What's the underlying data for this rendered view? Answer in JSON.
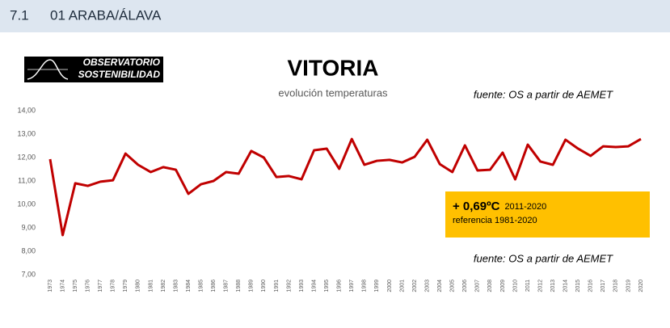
{
  "header": {
    "number": "7.1",
    "title": "01 ARABA/ÁLAVA"
  },
  "chart_data": {
    "type": "line",
    "title": "VITORIA",
    "subtitle": "evolución temperaturas",
    "logo": [
      "OBSERVATORIO",
      "SOSTENIBILIDAD"
    ],
    "sources": [
      "fuente: OS a partir de AEMET",
      "fuente: OS a partir de AEMET"
    ],
    "annotation": {
      "value_text": "+ 0,69ºC",
      "period": "2011-2020",
      "reference": "referencia 1981-2020"
    },
    "categories": [
      "1973",
      "1974",
      "1975",
      "1976",
      "1977",
      "1978",
      "1979",
      "1980",
      "1981",
      "1982",
      "1983",
      "1984",
      "1985",
      "1986",
      "1987",
      "1988",
      "1989",
      "1990",
      "1991",
      "1992",
      "1993",
      "1994",
      "1995",
      "1996",
      "1997",
      "1998",
      "1999",
      "2000",
      "2001",
      "2002",
      "2003",
      "2004",
      "2005",
      "2006",
      "2007",
      "2008",
      "2009",
      "2010",
      "2011",
      "2012",
      "2013",
      "2014",
      "2015",
      "2016",
      "2017",
      "2018",
      "2019",
      "2020"
    ],
    "values": [
      11.93,
      8.69,
      10.9,
      10.79,
      10.97,
      11.03,
      12.17,
      11.69,
      11.38,
      11.59,
      11.48,
      10.45,
      10.86,
      11.0,
      11.38,
      11.31,
      12.28,
      12.0,
      11.17,
      11.21,
      11.07,
      12.31,
      12.38,
      11.52,
      12.79,
      11.69,
      11.86,
      11.9,
      11.79,
      12.03,
      12.76,
      11.72,
      11.38,
      12.52,
      11.45,
      11.48,
      12.21,
      11.07,
      12.55,
      11.83,
      11.69,
      12.76,
      12.38,
      12.07,
      12.48,
      12.45,
      12.48,
      12.79
    ],
    "color": "#c00000",
    "ylim": [
      7,
      14
    ],
    "yticks": [
      {
        "value": 7,
        "label": "7,00"
      },
      {
        "value": 8,
        "label": "8,00"
      },
      {
        "value": 9,
        "label": "9,00"
      },
      {
        "value": 10,
        "label": "10,00"
      },
      {
        "value": 11,
        "label": "11,00"
      },
      {
        "value": 12,
        "label": "12,00"
      },
      {
        "value": 13,
        "label": "13,00"
      },
      {
        "value": 14,
        "label": "14,00"
      }
    ],
    "grid": false
  }
}
